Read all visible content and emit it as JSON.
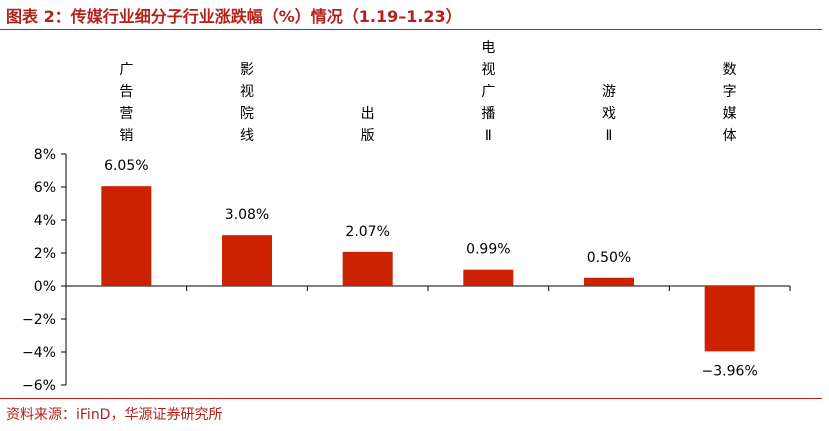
{
  "title": "图表 2：传媒行业细分子行业涨跌幅（%）情况（1.19–1.23）",
  "source": "资料来源：iFinD，华源证券研究所",
  "colors": {
    "accent": "#b4201a",
    "bar": "#cc2200"
  },
  "chart_data": {
    "type": "bar",
    "categories": [
      "广告营销",
      "影视院线",
      "出版",
      "电视广播Ⅱ",
      "游戏Ⅱ",
      "数字媒体"
    ],
    "values": [
      6.05,
      3.08,
      2.07,
      0.99,
      0.5,
      -3.96
    ],
    "data_labels": [
      "6.05%",
      "3.08%",
      "2.07%",
      "0.99%",
      "0.50%",
      "−3.96%"
    ],
    "ylim": [
      -6,
      8
    ],
    "yticks": [
      8,
      6,
      4,
      2,
      0,
      -2,
      -4,
      -6
    ],
    "ytick_labels": [
      "8%",
      "6%",
      "4%",
      "2%",
      "0%",
      "−2%",
      "−4%",
      "−6%"
    ],
    "grid": false,
    "legend": "none"
  }
}
